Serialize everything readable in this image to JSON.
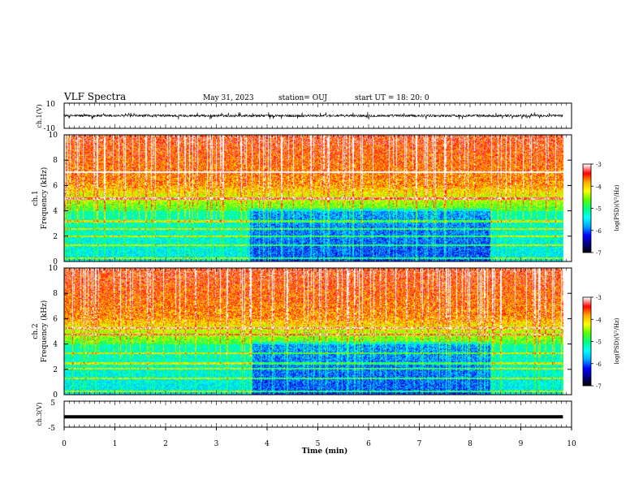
{
  "header": {
    "title": "VLF Spectra",
    "date": "May 31, 2023",
    "station": "station= OUJ",
    "start": "start UT =  18: 20: 0"
  },
  "chart_data": [
    {
      "type": "line",
      "panel": "ch1-waveform",
      "ylabel": "ch.1(V)",
      "ylim": [
        -10,
        10
      ],
      "yticks": [
        "10",
        "-10"
      ],
      "description_values": {
        "x_range_min": [
          0,
          9.83
        ],
        "amplitude_typical_V": 1.0,
        "amplitude_spike_V": 3.0
      }
    },
    {
      "type": "heatmap",
      "panel": "ch1-spectrogram",
      "ylabel_top": "ch.1",
      "ylabel": "Frequency (kHz)",
      "ylim": [
        0,
        10
      ],
      "yticks": [
        "0",
        "2",
        "4",
        "6",
        "8",
        "10"
      ],
      "x_range_min": [
        0,
        9.83
      ],
      "quiet_interval_min": [
        3.65,
        8.4
      ],
      "bands_khz": [
        0.3,
        1.3,
        2.0,
        2.6,
        3.2,
        5.0,
        7.1
      ],
      "colorbar": {
        "label": "log(PSD)(V²/Hz)",
        "range": [
          -7,
          -3
        ],
        "ticks": [
          "-3",
          "-4",
          "-5",
          "-6",
          "-7"
        ]
      }
    },
    {
      "type": "heatmap",
      "panel": "ch2-spectrogram",
      "ylabel_top": "ch.2",
      "ylabel": "Frequency (kHz)",
      "ylim": [
        0,
        10
      ],
      "yticks": [
        "0",
        "2",
        "4",
        "6",
        "8",
        "10"
      ],
      "x_range_min": [
        0,
        9.83
      ],
      "quiet_interval_min": [
        3.7,
        8.4
      ],
      "bands_khz": [
        0.3,
        1.3,
        2.1,
        2.5,
        3.3,
        4.8,
        5.3
      ],
      "colorbar": {
        "label": "log(PSD)(V²/Hz)",
        "range": [
          -7,
          -3
        ],
        "ticks": [
          "-3",
          "-4",
          "-5",
          "-6",
          "-7"
        ]
      }
    },
    {
      "type": "line",
      "panel": "ch3-waveform",
      "ylabel": "ch.3(V)",
      "ylim": [
        -5,
        5
      ],
      "yticks": [
        "5",
        "-5"
      ],
      "x": [
        0,
        9.83
      ],
      "y": [
        -1,
        -1
      ]
    }
  ],
  "xaxis": {
    "label": "Time (min)",
    "ticks": [
      "0",
      "1",
      "2",
      "3",
      "4",
      "5",
      "6",
      "7",
      "8",
      "9",
      "10"
    ],
    "range": [
      0,
      10
    ]
  },
  "colormap": [
    "#000000",
    "#000080",
    "#0000ff",
    "#00aaff",
    "#00ffff",
    "#00ff80",
    "#55ff00",
    "#ffff00",
    "#ffaa00",
    "#ff0000",
    "#ffffff"
  ]
}
